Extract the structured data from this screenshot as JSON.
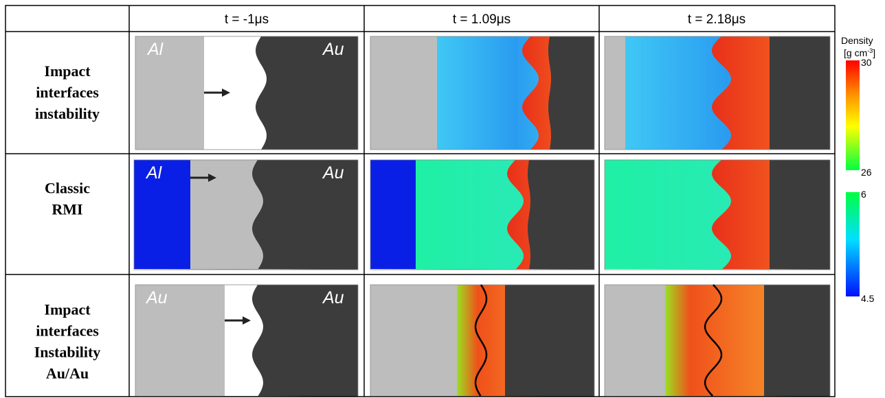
{
  "header": {
    "columns": [
      "t = -1μs",
      "t = 1.09μs",
      "t = 2.18μs"
    ]
  },
  "rows": [
    {
      "label": [
        "Impact",
        "interfaces",
        "instability"
      ],
      "materials": [
        "Al",
        "Au"
      ]
    },
    {
      "label": [
        "Classic",
        "RMI"
      ],
      "materials": [
        "Al",
        "Au"
      ]
    },
    {
      "label": [
        "Impact",
        "interfaces",
        "Instability",
        "Au/Au"
      ],
      "materials": [
        "Au",
        "Au"
      ]
    }
  ],
  "colorbar": {
    "title": "Density",
    "unit": "[g cm",
    "unit_sup": "-3",
    "unit_end": "]",
    "upper_ticks": [
      30,
      26
    ],
    "lower_ticks": [
      6,
      4.5
    ]
  }
}
